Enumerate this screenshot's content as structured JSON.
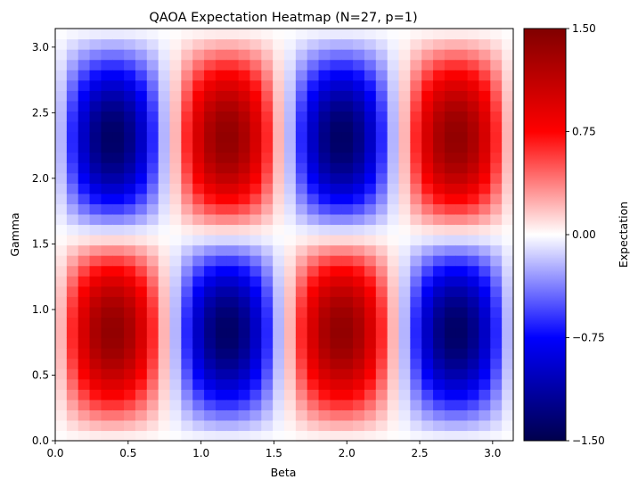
{
  "chart_data": {
    "type": "heatmap",
    "title": "QAOA Expectation Heatmap (N=27, p=1)",
    "xlabel": "Beta",
    "ylabel": "Gamma",
    "xlim": [
      0,
      3.1416
    ],
    "ylim": [
      0,
      3.1416
    ],
    "x_ticks": [
      "0.0",
      "0.5",
      "1.0",
      "1.5",
      "2.0",
      "2.5",
      "3.0"
    ],
    "x_tick_values": [
      0,
      0.5,
      1.0,
      1.5,
      2.0,
      2.5,
      3.0
    ],
    "y_ticks": [
      "0.0",
      "0.5",
      "1.0",
      "1.5",
      "2.0",
      "2.5",
      "3.0"
    ],
    "y_tick_values": [
      0,
      0.5,
      1.0,
      1.5,
      2.0,
      2.5,
      3.0
    ],
    "grid": false,
    "colormap": "seismic",
    "colorbar": {
      "label": "Expectation",
      "range": [
        -1.5,
        1.5
      ],
      "ticks": [
        "1.50",
        "0.75",
        "0.00",
        "−0.75",
        "−1.50"
      ],
      "tick_values": [
        1.5,
        0.75,
        0.0,
        -0.75,
        -1.5
      ],
      "colors": [
        "#00004c",
        "#0000ff",
        "#ffffff",
        "#ff0000",
        "#800000"
      ]
    },
    "grid_size": [
      40,
      40
    ],
    "expression": "E(beta, gamma) = 1.5 * sin(4*beta) * sin(2*gamma) * |sin(gamma)|^0.2 (read approximately from the image)"
  }
}
